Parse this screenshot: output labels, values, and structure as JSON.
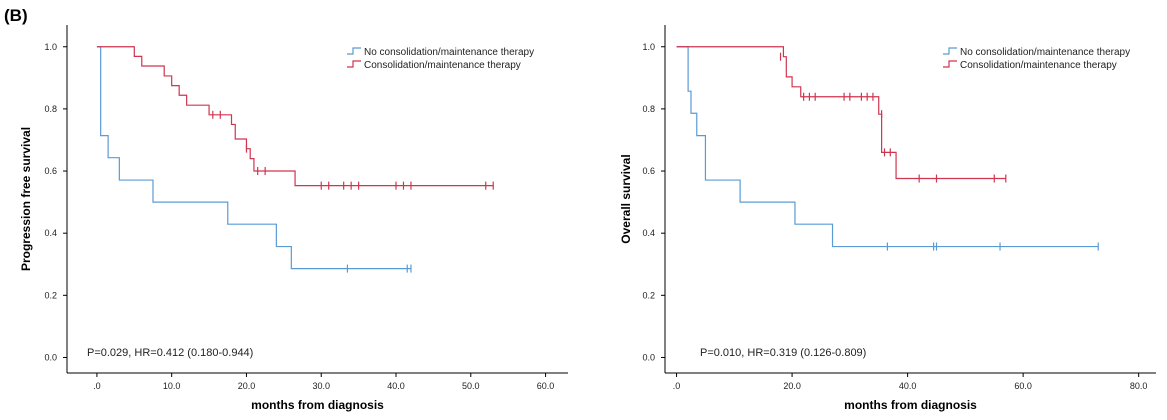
{
  "panel_label": "(B)",
  "colors": {
    "no_therapy": "#5b9bd5",
    "therapy": "#d0354f",
    "axis": "#000000"
  },
  "chart_data": [
    {
      "type": "line",
      "title": "",
      "xlabel": "months from diagnosis",
      "ylabel": "Progression free survival",
      "xlim": [
        -4,
        63
      ],
      "ylim": [
        -0.05,
        1.07
      ],
      "xticks": [
        0,
        10,
        20,
        30,
        40,
        50,
        60
      ],
      "xtick_labels": [
        ".0",
        "10.0",
        "20.0",
        "30.0",
        "40.0",
        "50.0",
        "60.0"
      ],
      "yticks": [
        0,
        0.2,
        0.4,
        0.6,
        0.8,
        1.0
      ],
      "ytick_labels": [
        "0.0",
        "0.2",
        "0.4",
        "0.6",
        "0.8",
        "1.0"
      ],
      "annotation": "P=0.029, HR=0.412 (0.180-0.944)",
      "legend_position": "top-right",
      "series": [
        {
          "name": "No consolidation/maintenance therapy",
          "color_key": "no_therapy",
          "steps": [
            [
              0,
              1.0
            ],
            [
              0.5,
              0.714
            ],
            [
              1.5,
              0.643
            ],
            [
              3,
              0.571
            ],
            [
              7.5,
              0.5
            ],
            [
              17.5,
              0.429
            ],
            [
              24,
              0.357
            ],
            [
              26,
              0.286
            ],
            [
              42,
              0.286
            ]
          ],
          "censored": [
            [
              33.5,
              0.286
            ],
            [
              41.5,
              0.286
            ],
            [
              42,
              0.286
            ]
          ]
        },
        {
          "name": "Consolidation/maintenance therapy",
          "color_key": "therapy",
          "steps": [
            [
              0,
              1.0
            ],
            [
              5,
              0.969
            ],
            [
              6,
              0.938
            ],
            [
              9,
              0.906
            ],
            [
              10,
              0.875
            ],
            [
              11,
              0.844
            ],
            [
              12,
              0.812
            ],
            [
              15,
              0.781
            ],
            [
              18,
              0.75
            ],
            [
              18.5,
              0.703
            ],
            [
              20,
              0.672
            ],
            [
              20.5,
              0.64
            ],
            [
              21,
              0.6
            ],
            [
              26.5,
              0.553
            ],
            [
              53,
              0.553
            ]
          ],
          "censored": [
            [
              15.5,
              0.781
            ],
            [
              16.5,
              0.781
            ],
            [
              20,
              0.672
            ],
            [
              21.5,
              0.6
            ],
            [
              22.5,
              0.6
            ],
            [
              30,
              0.553
            ],
            [
              31,
              0.553
            ],
            [
              33,
              0.553
            ],
            [
              34,
              0.553
            ],
            [
              35,
              0.553
            ],
            [
              40,
              0.553
            ],
            [
              41,
              0.553
            ],
            [
              42,
              0.553
            ],
            [
              52,
              0.553
            ],
            [
              53,
              0.553
            ]
          ]
        }
      ]
    },
    {
      "type": "line",
      "title": "",
      "xlabel": "months from diagnosis",
      "ylabel": "Overall survival",
      "xlim": [
        -2,
        83
      ],
      "ylim": [
        -0.05,
        1.07
      ],
      "xticks": [
        0,
        20,
        40,
        60,
        80
      ],
      "xtick_labels": [
        ".0",
        "20.0",
        "40.0",
        "60.0",
        "80.0"
      ],
      "yticks": [
        0,
        0.2,
        0.4,
        0.6,
        0.8,
        1.0
      ],
      "ytick_labels": [
        "0.0",
        "0.2",
        "0.4",
        "0.6",
        "0.8",
        "1.0"
      ],
      "annotation": "P=0.010, HR=0.319 (0.126-0.809)",
      "legend_position": "top-right",
      "series": [
        {
          "name": "No consolidation/maintenance therapy",
          "color_key": "no_therapy",
          "steps": [
            [
              0,
              1.0
            ],
            [
              2,
              0.857
            ],
            [
              2.5,
              0.786
            ],
            [
              3.5,
              0.714
            ],
            [
              5,
              0.571
            ],
            [
              11,
              0.5
            ],
            [
              20.5,
              0.429
            ],
            [
              27,
              0.357
            ],
            [
              73,
              0.357
            ]
          ],
          "censored": [
            [
              36.5,
              0.357
            ],
            [
              44.5,
              0.357
            ],
            [
              45,
              0.357
            ],
            [
              56,
              0.357
            ],
            [
              73,
              0.357
            ]
          ]
        },
        {
          "name": "Consolidation/maintenance therapy",
          "color_key": "therapy",
          "steps": [
            [
              0,
              1.0
            ],
            [
              18.5,
              0.968
            ],
            [
              19,
              0.903
            ],
            [
              20,
              0.871
            ],
            [
              21.5,
              0.839
            ],
            [
              35,
              0.783
            ],
            [
              35.5,
              0.66
            ],
            [
              38,
              0.576
            ],
            [
              57,
              0.576
            ]
          ],
          "censored": [
            [
              18,
              0.968
            ],
            [
              22,
              0.839
            ],
            [
              23,
              0.839
            ],
            [
              24,
              0.839
            ],
            [
              29,
              0.839
            ],
            [
              30,
              0.839
            ],
            [
              32,
              0.839
            ],
            [
              33,
              0.839
            ],
            [
              34,
              0.839
            ],
            [
              35.5,
              0.783
            ],
            [
              36,
              0.66
            ],
            [
              37,
              0.66
            ],
            [
              42,
              0.576
            ],
            [
              45,
              0.576
            ],
            [
              55,
              0.576
            ],
            [
              57,
              0.576
            ]
          ]
        }
      ]
    }
  ]
}
